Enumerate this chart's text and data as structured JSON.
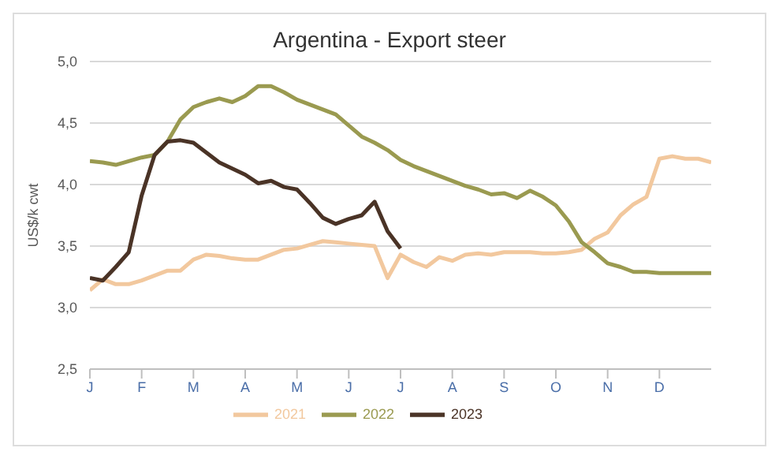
{
  "chart_data": {
    "type": "line",
    "title": "Argentina - Export steer",
    "ylabel": "US$/k cwt",
    "categories": [
      "J",
      null,
      null,
      null,
      "F",
      null,
      null,
      null,
      "M",
      null,
      null,
      null,
      "A",
      null,
      null,
      null,
      "M",
      null,
      null,
      null,
      "J",
      null,
      null,
      null,
      "J",
      null,
      null,
      null,
      "A",
      null,
      null,
      null,
      "S",
      null,
      null,
      null,
      "O",
      null,
      null,
      null,
      "N",
      null,
      null,
      null,
      "D",
      null,
      null,
      null,
      null
    ],
    "ylim": [
      2.5,
      5.0
    ],
    "yticks": [
      {
        "value": 2.5,
        "label": "2,5"
      },
      {
        "value": 3.0,
        "label": "3,0"
      },
      {
        "value": 3.5,
        "label": "3,5"
      },
      {
        "value": 4.0,
        "label": "4,0"
      },
      {
        "value": 4.5,
        "label": "4,5"
      },
      {
        "value": 5.0,
        "label": "5,0"
      }
    ],
    "grid": "y",
    "legend": "bottom",
    "marker": "none",
    "line_style": "solid",
    "series": [
      {
        "name": "2021",
        "color": "#f2c89e",
        "values": [
          3.14,
          3.23,
          3.19,
          3.19,
          3.22,
          3.26,
          3.3,
          3.3,
          3.39,
          3.43,
          3.42,
          3.4,
          3.39,
          3.39,
          3.43,
          3.47,
          3.48,
          3.51,
          3.54,
          3.53,
          3.52,
          3.51,
          3.5,
          3.24,
          3.43,
          3.37,
          3.33,
          3.41,
          3.38,
          3.43,
          3.44,
          3.43,
          3.45,
          3.45,
          3.45,
          3.44,
          3.44,
          3.45,
          3.47,
          3.56,
          3.61,
          3.75,
          3.84,
          3.9,
          4.21,
          4.23,
          4.21,
          4.21,
          4.18
        ]
      },
      {
        "name": "2022",
        "color": "#9a9a50",
        "values": [
          4.19,
          4.18,
          4.16,
          4.19,
          4.22,
          4.24,
          4.35,
          4.53,
          4.63,
          4.67,
          4.7,
          4.67,
          4.72,
          4.8,
          4.8,
          4.75,
          4.69,
          4.65,
          4.61,
          4.57,
          4.48,
          4.39,
          4.34,
          4.28,
          4.2,
          4.15,
          4.11,
          4.07,
          4.03,
          3.99,
          3.96,
          3.92,
          3.93,
          3.89,
          3.95,
          3.9,
          3.83,
          3.7,
          3.53,
          3.45,
          3.36,
          3.33,
          3.29,
          3.29,
          3.28,
          3.28,
          3.28,
          3.28,
          3.28
        ]
      },
      {
        "name": "2023",
        "color": "#4a3326",
        "values": [
          3.24,
          3.22,
          3.33,
          3.45,
          3.91,
          4.24,
          4.35,
          4.36,
          4.34,
          4.26,
          4.18,
          4.13,
          4.08,
          4.01,
          4.03,
          3.98,
          3.96,
          3.85,
          3.73,
          3.68,
          3.72,
          3.75,
          3.86,
          3.62,
          3.48,
          null,
          null,
          null,
          null,
          null,
          null,
          null,
          null,
          null,
          null,
          null,
          null,
          null,
          null,
          null,
          null,
          null,
          null,
          null,
          null,
          null,
          null,
          null,
          null
        ]
      }
    ]
  }
}
